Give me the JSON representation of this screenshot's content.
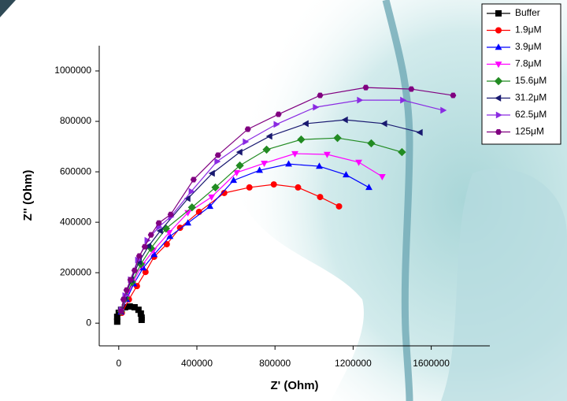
{
  "chart_data": {
    "type": "scatter-line",
    "x_label": "Z' (Ohm)",
    "y_label": "Z'' (Ohm)",
    "xlim": [
      -100000,
      1900000
    ],
    "ylim": [
      -90000,
      1100000
    ],
    "xticks": [
      0,
      400000,
      800000,
      1200000,
      1600000
    ],
    "yticks": [
      0,
      200000,
      400000,
      600000,
      800000,
      1000000
    ],
    "legend": "upper right",
    "series": [
      {
        "name": "Buffer",
        "color": "#000000",
        "marker": "square",
        "x": [
          -8000,
          -8000,
          0,
          12000,
          32000,
          56000,
          81000,
          101000,
          113000,
          117000,
          117000
        ],
        "values": [
          6000,
          25000,
          41000,
          53000,
          63000,
          66000,
          63000,
          53000,
          38000,
          22000,
          13000
        ]
      },
      {
        "name": "1.9μM",
        "color": "#ff0000",
        "marker": "circle",
        "x": [
          16000,
          52000,
          93000,
          137000,
          181000,
          246000,
          314000,
          411000,
          540000,
          669000,
          794000,
          918000,
          1031000,
          1128000
        ],
        "values": [
          41000,
          94000,
          147000,
          203000,
          263000,
          313000,
          378000,
          441000,
          516000,
          538000,
          550000,
          538000,
          500000,
          463000
        ]
      },
      {
        "name": "3.9μM",
        "color": "#0000ff",
        "marker": "triangle-up",
        "x": [
          12000,
          40000,
          77000,
          125000,
          181000,
          262000,
          354000,
          467000,
          588000,
          721000,
          870000,
          1027000,
          1164000,
          1281000
        ],
        "values": [
          44000,
          94000,
          156000,
          219000,
          272000,
          344000,
          397000,
          463000,
          566000,
          606000,
          631000,
          622000,
          588000,
          538000
        ]
      },
      {
        "name": "7.8μM",
        "color": "#ff00ff",
        "marker": "triangle-down",
        "x": [
          12000,
          40000,
          73000,
          121000,
          177000,
          258000,
          354000,
          475000,
          604000,
          745000,
          902000,
          1067000,
          1229000,
          1349000
        ],
        "values": [
          44000,
          100000,
          163000,
          231000,
          288000,
          359000,
          438000,
          500000,
          597000,
          634000,
          672000,
          669000,
          638000,
          581000
        ]
      },
      {
        "name": "15.6μM",
        "color": "#228b22",
        "marker": "diamond",
        "x": [
          12000,
          36000,
          68000,
          113000,
          165000,
          242000,
          375000,
          495000,
          620000,
          757000,
          934000,
          1120000,
          1293000,
          1450000
        ],
        "values": [
          47000,
          100000,
          163000,
          234000,
          297000,
          375000,
          459000,
          538000,
          625000,
          688000,
          728000,
          734000,
          713000,
          678000
        ]
      },
      {
        "name": "31.2μM",
        "color": "#191970",
        "marker": "triangle-left",
        "x": [
          12000,
          32000,
          64000,
          105000,
          153000,
          213000,
          354000,
          479000,
          620000,
          773000,
          959000,
          1160000,
          1361000,
          1543000
        ],
        "values": [
          50000,
          103000,
          172000,
          244000,
          306000,
          366000,
          494000,
          594000,
          678000,
          741000,
          791000,
          806000,
          791000,
          756000
        ]
      },
      {
        "name": "62.5μM",
        "color": "#8a2be2",
        "marker": "triangle-right",
        "x": [
          12000,
          32000,
          60000,
          97000,
          145000,
          205000,
          266000,
          371000,
          503000,
          648000,
          806000,
          1007000,
          1233000,
          1454000,
          1660000
        ],
        "values": [
          53000,
          109000,
          172000,
          250000,
          328000,
          381000,
          422000,
          522000,
          641000,
          719000,
          788000,
          856000,
          884000,
          884000,
          844000
        ]
      },
      {
        "name": "125μM",
        "color": "#800080",
        "marker": "hexagon",
        "x": [
          12000,
          24000,
          40000,
          60000,
          81000,
          105000,
          133000,
          165000,
          205000,
          266000,
          383000,
          508000,
          661000,
          818000,
          1031000,
          1265000,
          1498000,
          1712000
        ],
        "values": [
          47000,
          94000,
          131000,
          172000,
          209000,
          266000,
          303000,
          350000,
          397000,
          431000,
          569000,
          666000,
          769000,
          828000,
          903000,
          934000,
          928000,
          903000
        ]
      }
    ]
  }
}
